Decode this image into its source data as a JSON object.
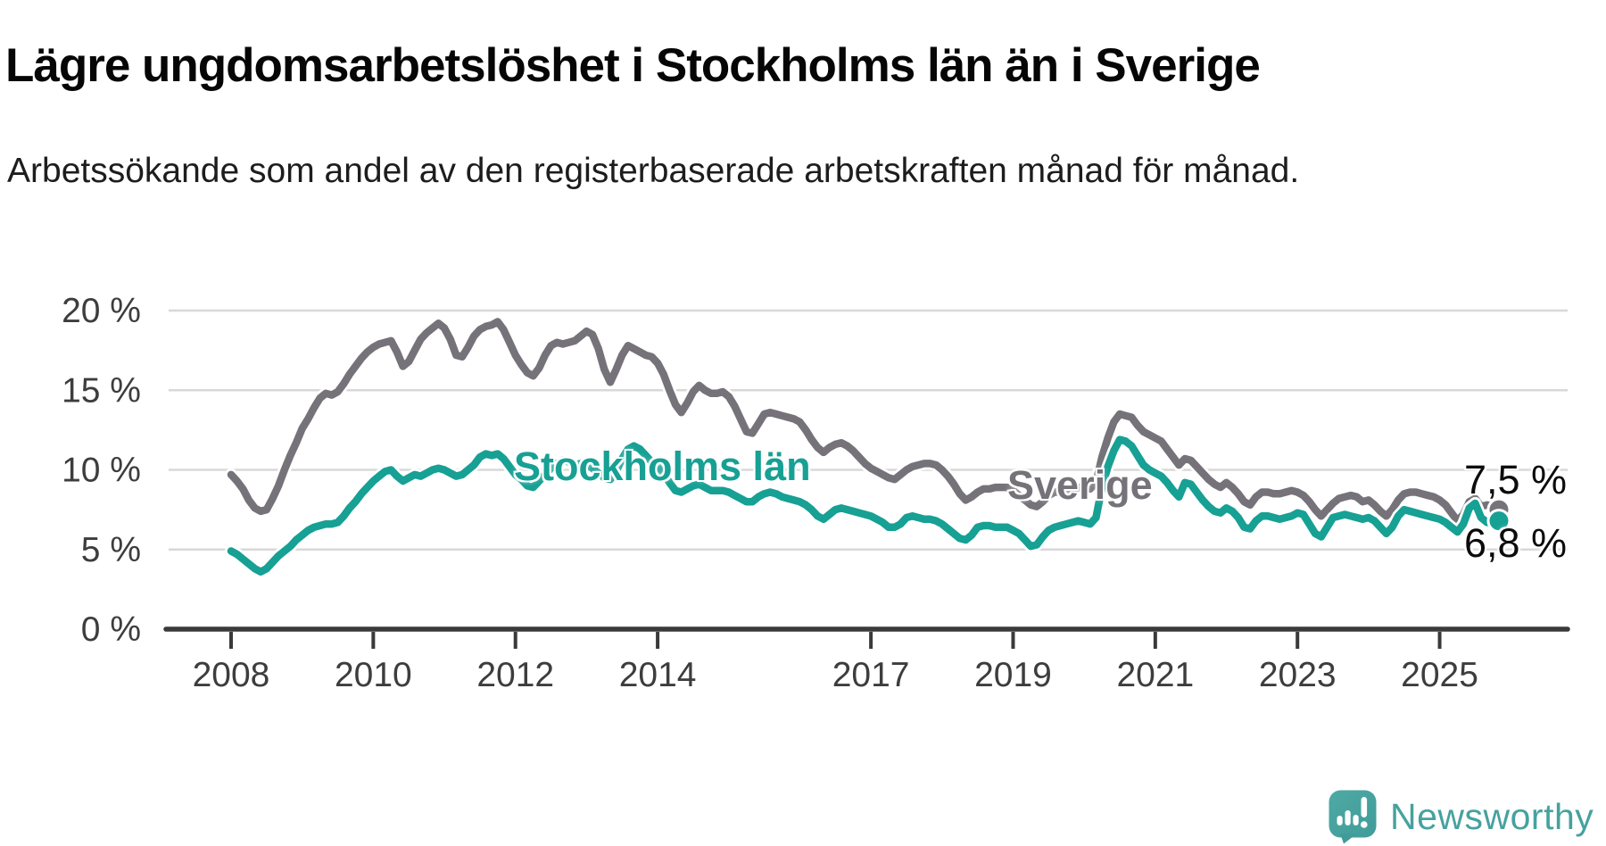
{
  "title": "Lägre ungdomsarbetslöshet i Stockholms län än i Sverige",
  "subtitle": "Arbetssökande som andel av den registerbaserade arbetskraften månad för månad.",
  "chart_data": {
    "type": "line",
    "unit": "%",
    "frequency": "monthly",
    "x_start": "2008-01",
    "x_end": "2025-11",
    "grid": "horizontal",
    "legend_position": "inline-labels",
    "ylim": [
      0,
      21
    ],
    "yticks": [
      {
        "value": 20,
        "label": "20 %"
      },
      {
        "value": 15,
        "label": "15 %"
      },
      {
        "value": 10,
        "label": "10 %"
      },
      {
        "value": 5,
        "label": "5 %"
      },
      {
        "value": 0,
        "label": "0 %"
      }
    ],
    "xticks": [
      {
        "year": 2008,
        "label": "2008"
      },
      {
        "year": 2010,
        "label": "2010"
      },
      {
        "year": 2012,
        "label": "2012"
      },
      {
        "year": 2014,
        "label": "2014"
      },
      {
        "year": 2017,
        "label": "2017"
      },
      {
        "year": 2019,
        "label": "2019"
      },
      {
        "year": 2021,
        "label": "2021"
      },
      {
        "year": 2023,
        "label": "2023"
      },
      {
        "year": 2025,
        "label": "2025"
      }
    ],
    "series": [
      {
        "name": "Sverige",
        "color": "#757379",
        "end_label": "7,5 %",
        "end_dot": true,
        "values": [
          9.7,
          9.3,
          8.8,
          8.1,
          7.6,
          7.4,
          7.5,
          8.2,
          9.0,
          10.0,
          10.9,
          11.7,
          12.6,
          13.2,
          13.9,
          14.5,
          14.8,
          14.7,
          14.9,
          15.4,
          16.0,
          16.5,
          17.0,
          17.4,
          17.7,
          17.9,
          18.0,
          18.1,
          17.4,
          16.5,
          16.8,
          17.5,
          18.2,
          18.6,
          18.9,
          19.2,
          18.9,
          18.2,
          17.2,
          17.1,
          17.7,
          18.4,
          18.8,
          19.0,
          19.1,
          19.3,
          18.8,
          18.0,
          17.2,
          16.6,
          16.1,
          15.9,
          16.4,
          17.2,
          17.8,
          18.0,
          17.9,
          18.0,
          18.1,
          18.4,
          18.7,
          18.5,
          17.6,
          16.3,
          15.5,
          16.3,
          17.2,
          17.8,
          17.6,
          17.4,
          17.2,
          17.1,
          16.7,
          16.0,
          15.0,
          14.1,
          13.6,
          14.2,
          14.9,
          15.3,
          15.0,
          14.8,
          14.8,
          14.9,
          14.6,
          14.0,
          13.2,
          12.4,
          12.3,
          12.9,
          13.5,
          13.6,
          13.5,
          13.4,
          13.3,
          13.2,
          13.0,
          12.5,
          11.9,
          11.4,
          11.1,
          11.4,
          11.6,
          11.7,
          11.5,
          11.2,
          10.8,
          10.4,
          10.1,
          9.9,
          9.7,
          9.5,
          9.4,
          9.7,
          10.0,
          10.2,
          10.3,
          10.4,
          10.4,
          10.3,
          10.0,
          9.6,
          9.1,
          8.5,
          8.1,
          8.3,
          8.6,
          8.8,
          8.8,
          8.9,
          8.9,
          8.9,
          8.7,
          8.4,
          8.1,
          7.8,
          7.7,
          8.0,
          8.4,
          8.6,
          8.6,
          8.7,
          8.8,
          8.9,
          8.9,
          8.8,
          9.2,
          10.8,
          12.0,
          13.0,
          13.5,
          13.4,
          13.3,
          12.8,
          12.4,
          12.2,
          12.0,
          11.8,
          11.3,
          10.8,
          10.3,
          10.7,
          10.6,
          10.2,
          9.8,
          9.4,
          9.1,
          8.9,
          9.2,
          8.9,
          8.5,
          8.0,
          7.8,
          8.3,
          8.6,
          8.6,
          8.5,
          8.5,
          8.6,
          8.7,
          8.6,
          8.4,
          8.0,
          7.5,
          7.1,
          7.5,
          7.9,
          8.2,
          8.3,
          8.4,
          8.3,
          8.0,
          8.1,
          7.8,
          7.4,
          7.1,
          7.5,
          8.1,
          8.5,
          8.6,
          8.6,
          8.5,
          8.4,
          8.3,
          8.1,
          7.8,
          7.3,
          6.8,
          7.2,
          8.0,
          8.2,
          7.7,
          7.8,
          7.7,
          7.5
        ]
      },
      {
        "name": "Stockholms län",
        "color": "#17a094",
        "end_label": "6,8 %",
        "end_dot": true,
        "values": [
          4.9,
          4.7,
          4.4,
          4.1,
          3.8,
          3.6,
          3.8,
          4.2,
          4.6,
          4.9,
          5.2,
          5.6,
          5.9,
          6.2,
          6.4,
          6.5,
          6.6,
          6.6,
          6.7,
          7.1,
          7.6,
          8.0,
          8.5,
          8.9,
          9.3,
          9.6,
          9.9,
          10.0,
          9.6,
          9.3,
          9.5,
          9.7,
          9.6,
          9.8,
          10.0,
          10.1,
          10.0,
          9.8,
          9.6,
          9.7,
          10.0,
          10.3,
          10.8,
          11.0,
          10.9,
          11.0,
          10.7,
          10.2,
          9.7,
          9.4,
          9.0,
          8.9,
          9.3,
          9.7,
          10.1,
          10.4,
          10.6,
          10.5,
          10.3,
          10.4,
          10.3,
          10.1,
          9.8,
          9.5,
          9.4,
          9.9,
          10.7,
          11.3,
          11.5,
          11.3,
          10.9,
          10.5,
          10.2,
          9.8,
          9.2,
          8.7,
          8.6,
          8.8,
          9.0,
          9.1,
          8.9,
          8.7,
          8.7,
          8.7,
          8.6,
          8.4,
          8.2,
          8.0,
          8.0,
          8.3,
          8.5,
          8.6,
          8.5,
          8.3,
          8.2,
          8.1,
          8.0,
          7.8,
          7.5,
          7.1,
          6.9,
          7.2,
          7.5,
          7.6,
          7.5,
          7.4,
          7.3,
          7.2,
          7.1,
          6.9,
          6.7,
          6.4,
          6.4,
          6.6,
          7.0,
          7.1,
          7.0,
          6.9,
          6.9,
          6.8,
          6.6,
          6.3,
          6.0,
          5.7,
          5.6,
          5.9,
          6.4,
          6.5,
          6.5,
          6.4,
          6.4,
          6.4,
          6.2,
          6.0,
          5.6,
          5.2,
          5.3,
          5.8,
          6.2,
          6.4,
          6.5,
          6.6,
          6.7,
          6.8,
          6.7,
          6.6,
          7.0,
          8.9,
          10.2,
          11.2,
          11.9,
          11.8,
          11.5,
          10.9,
          10.3,
          10.0,
          9.8,
          9.6,
          9.2,
          8.7,
          8.3,
          9.2,
          9.1,
          8.6,
          8.1,
          7.7,
          7.4,
          7.3,
          7.6,
          7.4,
          7.0,
          6.4,
          6.3,
          6.8,
          7.1,
          7.1,
          7.0,
          6.9,
          7.0,
          7.1,
          7.3,
          7.2,
          6.6,
          6.0,
          5.8,
          6.4,
          7.0,
          7.1,
          7.2,
          7.1,
          7.0,
          6.9,
          7.0,
          6.8,
          6.4,
          6.0,
          6.4,
          7.1,
          7.5,
          7.4,
          7.3,
          7.2,
          7.1,
          7.0,
          6.9,
          6.7,
          6.4,
          6.1,
          6.6,
          7.6,
          7.9,
          7.0,
          6.7,
          7.0,
          6.8
        ]
      }
    ],
    "colors": {
      "grid": "#d8d8d8",
      "axis": "#3a3a3a",
      "tick_label": "#3d3d3d",
      "end_label": "#0c0c0c",
      "background": "#ffffff"
    }
  },
  "footer": {
    "brand": "Newsworthy",
    "logo_icon": "speech-bubble-bar-chart-icon",
    "logo_color": "#46a4a0"
  }
}
